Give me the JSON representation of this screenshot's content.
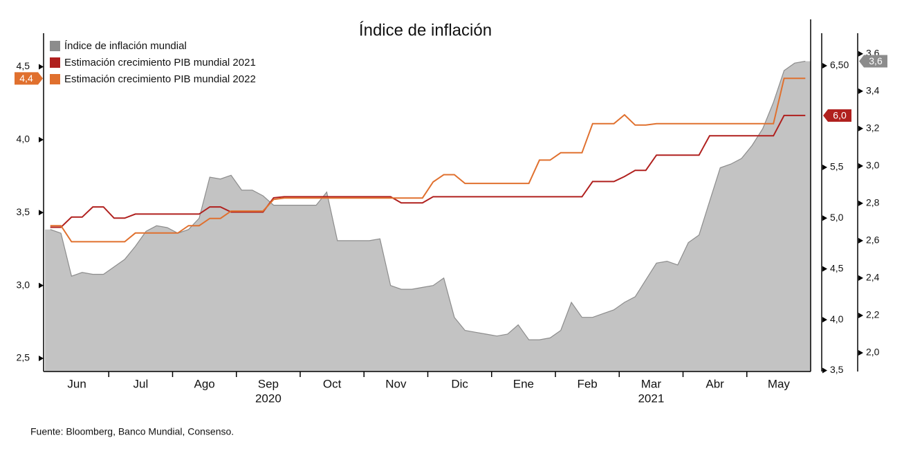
{
  "chart_data": {
    "type": "line",
    "title": "Índice de inflación",
    "source": "Fuente: Bloomberg, Banco Mundial, Consenso.",
    "categories": [
      null,
      null,
      null,
      "Jun",
      null,
      null,
      null,
      null,
      null,
      "Jul",
      null,
      null,
      null,
      null,
      null,
      "Ago",
      null,
      null,
      null,
      null,
      null,
      "Sep",
      null,
      null,
      null,
      null,
      null,
      "Oct",
      null,
      null,
      null,
      null,
      null,
      "Nov",
      null,
      null,
      null,
      null,
      null,
      "Dic",
      null,
      null,
      null,
      null,
      null,
      "Ene",
      null,
      null,
      null,
      null,
      null,
      "Feb",
      null,
      null,
      null,
      null,
      null,
      "Mar",
      null,
      null,
      null,
      null,
      null,
      "Abr",
      null,
      null,
      null,
      null,
      null,
      "May",
      null,
      null
    ],
    "x_sublabels": [
      null,
      null,
      null,
      null,
      null,
      null,
      null,
      null,
      null,
      null,
      null,
      null,
      null,
      null,
      null,
      null,
      null,
      null,
      null,
      null,
      null,
      "2020",
      null,
      null,
      null,
      null,
      null,
      null,
      null,
      null,
      null,
      null,
      null,
      null,
      null,
      null,
      null,
      null,
      null,
      null,
      null,
      null,
      null,
      null,
      null,
      null,
      null,
      null,
      null,
      null,
      null,
      null,
      null,
      null,
      null,
      null,
      null,
      "2021",
      null,
      null,
      null,
      null,
      null,
      null,
      null,
      null,
      null,
      null,
      null,
      null,
      null,
      null
    ],
    "ylim": [
      2.41,
      4.73
    ],
    "yticks": [
      {
        "value": 2.5,
        "label": "2,5"
      },
      {
        "value": 3,
        "label": "3,0"
      },
      {
        "value": 3.5,
        "label": "3,5"
      },
      {
        "value": 4,
        "label": "4,0"
      },
      {
        "value": 4.5,
        "label": "4,5"
      }
    ],
    "y2lim": [
      3.49,
      6.82
    ],
    "y2ticks": [
      {
        "value": 3.5,
        "label": "3,5"
      },
      {
        "value": 4,
        "label": "4,0"
      },
      {
        "value": 4.5,
        "label": "4,5"
      },
      {
        "value": 5,
        "label": "5,0"
      },
      {
        "value": 5.5,
        "label": "5,5"
      },
      {
        "value": 6.5,
        "label": "6,50"
      }
    ],
    "y3lim": [
      1.9,
      3.71
    ],
    "y3ticks": [
      {
        "value": 2,
        "label": "2,0"
      },
      {
        "value": 2.2,
        "label": "2,2"
      },
      {
        "value": 2.4,
        "label": "2,4"
      },
      {
        "value": 2.6,
        "label": "2,6"
      },
      {
        "value": 2.8,
        "label": "2,8"
      },
      {
        "value": 3,
        "label": "3,0"
      },
      {
        "value": 3.2,
        "label": "3,2"
      },
      {
        "value": 3.4,
        "label": "3,4"
      },
      {
        "value": 3.6,
        "label": "3,6"
      }
    ],
    "series": [
      {
        "name": "Índice de inflación mundial",
        "type": "area",
        "axis": "y3",
        "color": "#8c8c8c",
        "fill": "#c3c3c3",
        "end_label": "3,6",
        "values": [
          2.66,
          2.64,
          2.41,
          2.43,
          2.42,
          2.42,
          2.46,
          2.5,
          2.57,
          2.65,
          2.68,
          2.67,
          2.64,
          2.66,
          2.72,
          2.94,
          2.93,
          2.95,
          2.87,
          2.87,
          2.84,
          2.79,
          2.79,
          2.79,
          2.79,
          2.79,
          2.86,
          2.6,
          2.6,
          2.6,
          2.6,
          2.61,
          2.36,
          2.34,
          2.34,
          2.35,
          2.36,
          2.4,
          2.19,
          2.12,
          2.11,
          2.1,
          2.09,
          2.1,
          2.15,
          2.07,
          2.07,
          2.08,
          2.12,
          2.27,
          2.19,
          2.19,
          2.21,
          2.23,
          2.27,
          2.3,
          2.39,
          2.48,
          2.49,
          2.47,
          2.59,
          2.63,
          2.81,
          2.99,
          3.01,
          3.04,
          3.11,
          3.2,
          3.34,
          3.51,
          3.55,
          3.56
        ]
      },
      {
        "name": "Estimación crecimiento PIB mundial 2021",
        "type": "line",
        "axis": "y2",
        "color": "#b0201e",
        "end_label": "6,0",
        "values": [
          4.91,
          4.91,
          5.01,
          5.01,
          5.11,
          5.11,
          5.0,
          5.0,
          5.04,
          5.04,
          5.04,
          5.04,
          5.04,
          5.04,
          5.04,
          5.11,
          5.11,
          5.06,
          5.06,
          5.06,
          5.06,
          5.2,
          5.21,
          5.21,
          5.21,
          5.21,
          5.21,
          5.21,
          5.21,
          5.21,
          5.21,
          5.21,
          5.21,
          5.15,
          5.15,
          5.15,
          5.21,
          5.21,
          5.21,
          5.21,
          5.21,
          5.21,
          5.21,
          5.21,
          5.21,
          5.21,
          5.21,
          5.21,
          5.21,
          5.21,
          5.21,
          5.36,
          5.36,
          5.36,
          5.41,
          5.47,
          5.47,
          5.62,
          5.62,
          5.62,
          5.62,
          5.62,
          5.81,
          5.81,
          5.81,
          5.81,
          5.81,
          5.81,
          5.81,
          6.01,
          6.01,
          6.01
        ]
      },
      {
        "name": "Estimación crecimiento PIB mundial 2022",
        "type": "line",
        "axis": "y",
        "color": "#e0702e",
        "end_label": "4,4",
        "values": [
          3.41,
          3.41,
          3.3,
          3.3,
          3.3,
          3.3,
          3.3,
          3.3,
          3.36,
          3.36,
          3.36,
          3.36,
          3.36,
          3.41,
          3.41,
          3.46,
          3.46,
          3.51,
          3.51,
          3.51,
          3.51,
          3.59,
          3.6,
          3.6,
          3.6,
          3.6,
          3.6,
          3.6,
          3.6,
          3.6,
          3.6,
          3.6,
          3.6,
          3.6,
          3.6,
          3.6,
          3.71,
          3.76,
          3.76,
          3.7,
          3.7,
          3.7,
          3.7,
          3.7,
          3.7,
          3.7,
          3.86,
          3.86,
          3.91,
          3.91,
          3.91,
          4.11,
          4.11,
          4.11,
          4.17,
          4.1,
          4.1,
          4.11,
          4.11,
          4.11,
          4.11,
          4.11,
          4.11,
          4.11,
          4.11,
          4.11,
          4.11,
          4.11,
          4.11,
          4.42,
          4.42,
          4.42
        ]
      }
    ]
  }
}
